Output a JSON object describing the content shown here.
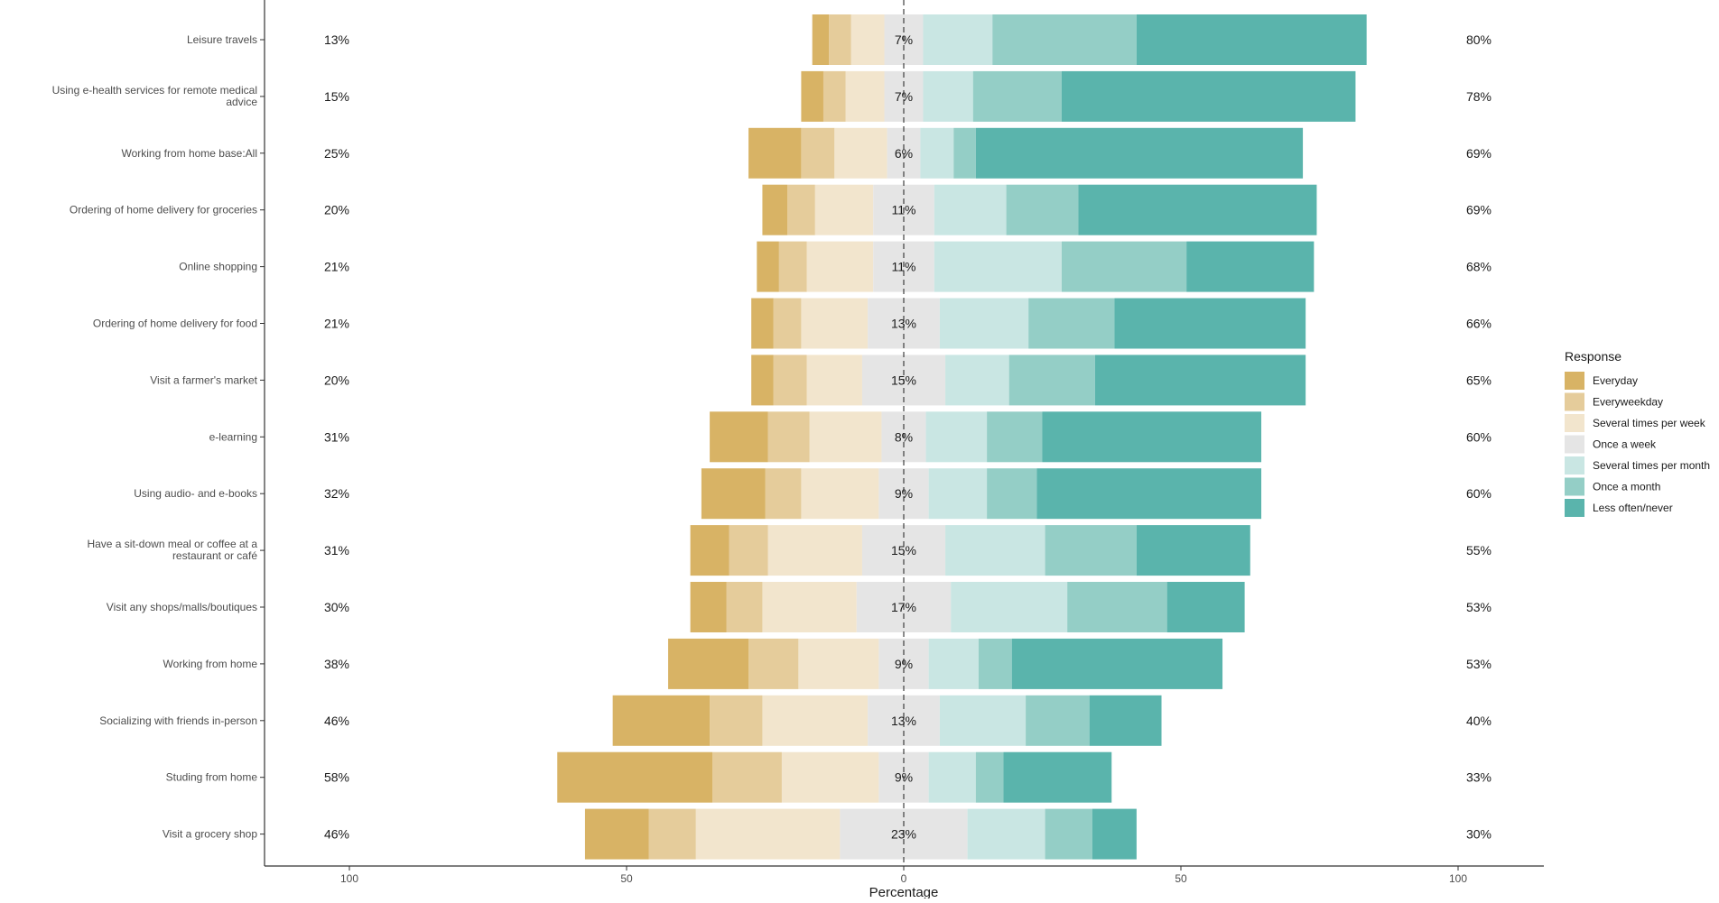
{
  "chart_data": {
    "type": "bar",
    "orientation": "horizontal",
    "stacked": "diverging",
    "xlabel": "Percentage",
    "xlim": [
      -100,
      100
    ],
    "xticks": [
      "100",
      "50",
      "0",
      "50",
      "100"
    ],
    "grid": false,
    "legend": {
      "title": "Response",
      "position": "right",
      "items": [
        {
          "label": "Everyday",
          "color": "#D8B365"
        },
        {
          "label": "Everyweekday",
          "color": "#E5CC9B"
        },
        {
          "label": "Several times per week",
          "color": "#F2E5CD"
        },
        {
          "label": "Once a week",
          "color": "#E5E5E5"
        },
        {
          "label": "Several times per month",
          "color": "#C9E6E3"
        },
        {
          "label": "Once a month",
          "color": "#94CEC6"
        },
        {
          "label": "Less often/never",
          "color": "#5AB4AC"
        }
      ]
    },
    "categories": [
      "Leisure travels",
      "Using e-health services for remote medical advice",
      "Working from home base:All",
      "Ordering of home delivery for groceries",
      "Online shopping",
      "Ordering of home delivery for food",
      "Visit a farmer's market",
      "e-learning",
      "Using audio- and e-books",
      "Have a sit-down meal or coffee at a restaurant or café",
      "Visit any shops/malls/boutiques",
      "Working from home",
      "Socializing with friends in-person",
      "Studing from home",
      "Visit a grocery shop"
    ],
    "series": [
      {
        "name": "Everyday",
        "values": [
          3,
          4,
          9.5,
          4.5,
          4,
          4,
          4,
          10.5,
          11.5,
          7,
          6.5,
          14.5,
          17.5,
          28,
          11.5
        ]
      },
      {
        "name": "Everyweekday",
        "values": [
          4,
          4,
          6,
          5,
          5,
          5,
          6,
          7.5,
          6.5,
          7,
          6.5,
          9,
          9.5,
          12.5,
          8.5
        ]
      },
      {
        "name": "Several times per week",
        "values": [
          6,
          7,
          9.5,
          10.5,
          12,
          12,
          10,
          13,
          14,
          17,
          17,
          14.5,
          19,
          17.5,
          26
        ]
      },
      {
        "name": "Once a week",
        "values": [
          7,
          7,
          6,
          11,
          11,
          13,
          15,
          8,
          9,
          15,
          17,
          9,
          13,
          9,
          23
        ]
      },
      {
        "name": "Several times per month",
        "values": [
          12.5,
          9,
          6,
          13,
          23,
          16,
          11.5,
          11,
          10.5,
          18,
          21,
          9,
          15.5,
          8.5,
          14
        ]
      },
      {
        "name": "Once a month",
        "values": [
          26,
          16,
          4,
          13,
          22.5,
          15.5,
          15.5,
          10,
          9,
          16.5,
          18,
          6,
          11.5,
          5,
          8.5
        ]
      },
      {
        "name": "Less often/never",
        "values": [
          41.5,
          53,
          59,
          43,
          23,
          34.5,
          38,
          39.5,
          40.5,
          20.5,
          14,
          38,
          13,
          19.5,
          8
        ]
      }
    ],
    "left_totals": [
      "13%",
      "15%",
      "25%",
      "20%",
      "21%",
      "21%",
      "20%",
      "31%",
      "32%",
      "31%",
      "30%",
      "38%",
      "46%",
      "58%",
      "46%"
    ],
    "neutral_labels": [
      "7%",
      "7%",
      "6%",
      "11%",
      "11%",
      "13%",
      "15%",
      "8%",
      "9%",
      "15%",
      "17%",
      "9%",
      "13%",
      "9%",
      "23%"
    ],
    "right_totals": [
      "80%",
      "78%",
      "69%",
      "69%",
      "68%",
      "66%",
      "65%",
      "60%",
      "60%",
      "55%",
      "53%",
      "53%",
      "40%",
      "33%",
      "30%"
    ]
  }
}
